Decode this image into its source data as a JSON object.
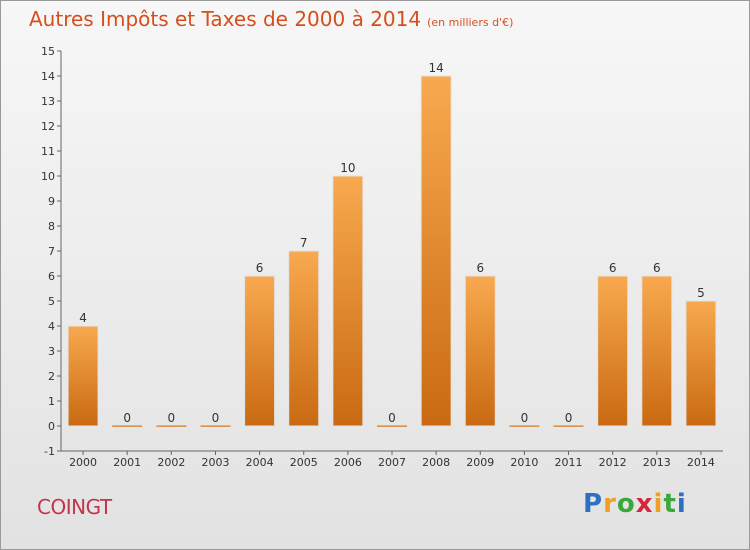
{
  "title": "Autres Impôts et Taxes de 2000 à 2014",
  "subtitle": "(en milliers d'€)",
  "commune": "COINGT",
  "brand": {
    "letters": [
      "P",
      "r",
      "o",
      "x",
      "i",
      "t",
      "i"
    ],
    "colors": [
      "#2f6fbf",
      "#f0a020",
      "#3aa83a",
      "#d6263b",
      "#f0a020",
      "#3aa83a",
      "#2f6fbf"
    ]
  },
  "colors": {
    "title": "#d64e1c",
    "bar_top": "#f8a94f",
    "bar_bottom": "#c96a12",
    "commune": "#c0364a"
  },
  "chart_data": {
    "type": "bar",
    "title": "Autres Impôts et Taxes de 2000 à 2014",
    "categories": [
      "2000",
      "2001",
      "2002",
      "2003",
      "2004",
      "2005",
      "2006",
      "2007",
      "2008",
      "2009",
      "2010",
      "2011",
      "2012",
      "2013",
      "2014"
    ],
    "values": [
      4,
      0,
      0,
      0,
      6,
      7,
      10,
      0,
      14,
      6,
      0,
      0,
      6,
      6,
      5
    ],
    "data_labels": [
      "4",
      "0",
      "0",
      "0",
      "6",
      "7",
      "10",
      "0",
      "14",
      "6",
      "0",
      "0",
      "6",
      "6",
      "5"
    ],
    "yticks": [
      "-1",
      "0",
      "1",
      "2",
      "3",
      "4",
      "5",
      "6",
      "7",
      "8",
      "9",
      "10",
      "11",
      "12",
      "13",
      "14",
      "15"
    ],
    "ylim": [
      -1,
      15
    ],
    "grid": false,
    "xlabel": "",
    "ylabel": ""
  }
}
